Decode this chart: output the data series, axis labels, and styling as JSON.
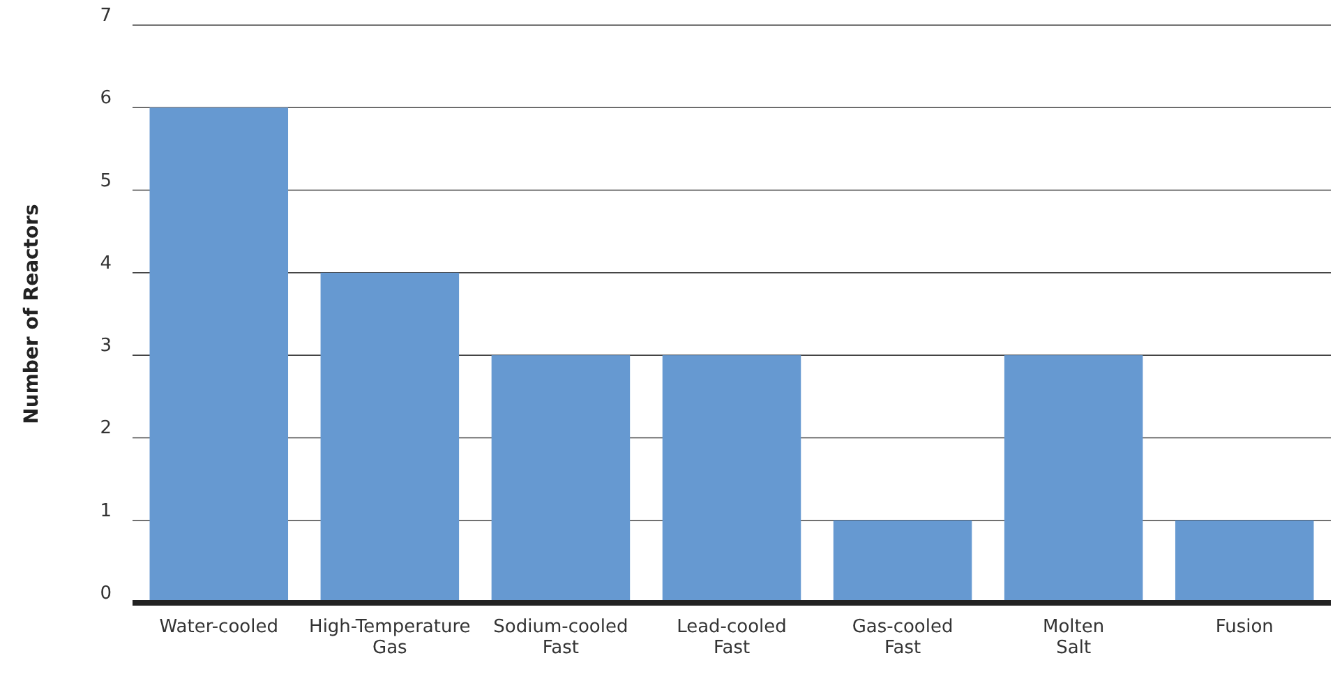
{
  "chart_data": {
    "type": "bar",
    "ylabel": "Number of Reactors",
    "categories": [
      "Water-cooled",
      "High-Temperature Gas",
      "Sodium-cooled Fast",
      "Lead-cooled Fast",
      "Gas-cooled Fast",
      "Molten Salt",
      "Fusion"
    ],
    "values": [
      6,
      4,
      3,
      3,
      1,
      3,
      1
    ],
    "color": "#6699d1",
    "ylim": [
      0,
      7
    ],
    "yticks": [
      0,
      1,
      2,
      3,
      4,
      5,
      6,
      7
    ],
    "grid": "y"
  }
}
